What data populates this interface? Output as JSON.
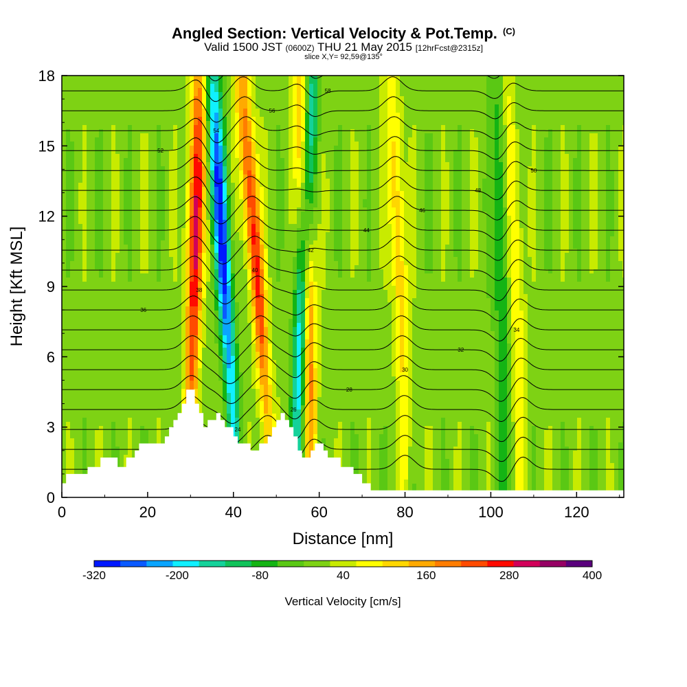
{
  "titles": {
    "main": "Angled Section: Vertical Velocity & Pot.Temp.",
    "main_tag": "(C)",
    "valid_a": "Valid 1500 JST",
    "valid_z": "(0600Z)",
    "valid_b": "THU 21 May 2015",
    "fcst": "[12hrFcst@2315z]",
    "slice": "slice X,Y= 92,59@135°"
  },
  "chart_data": {
    "type": "heatmap",
    "xlabel": "Distance [nm]",
    "ylabel": "Height [Kft MSL]",
    "xlim": [
      0,
      131
    ],
    "ylim": [
      0,
      18
    ],
    "x_ticks": [
      0,
      20,
      40,
      60,
      80,
      100,
      120
    ],
    "y_ticks": [
      0,
      3,
      6,
      9,
      12,
      15,
      18
    ],
    "colorbar": {
      "label": "Vertical Velocity [cm/s]",
      "tick_labels": [
        "-320",
        "-200",
        "-80",
        "40",
        "160",
        "280",
        "400"
      ],
      "tick_values": [
        -320,
        -200,
        -80,
        40,
        160,
        280,
        400
      ],
      "bins": [
        -320,
        -280,
        -240,
        -200,
        -160,
        -120,
        -80,
        -40,
        0,
        40,
        80,
        120,
        160,
        200,
        240,
        280,
        320,
        360,
        400
      ],
      "colors": [
        "#0018ff",
        "#0a5aff",
        "#0aa5ff",
        "#10f0ff",
        "#14d29a",
        "#10c35a",
        "#14b414",
        "#5ac814",
        "#7ed214",
        "#c8eb00",
        "#ffff00",
        "#ffd700",
        "#ffaa00",
        "#ff7d00",
        "#ff4b00",
        "#ff0a00",
        "#d2005a",
        "#960064",
        "#5a007d"
      ]
    },
    "background_value_cm_s": 20,
    "velocity_features": [
      {
        "type": "updraft",
        "x_bottom": 30,
        "x_top": 32,
        "peak": 320
      },
      {
        "type": "downdraft",
        "x_bottom": 40,
        "x_top": 35,
        "peak": -320
      },
      {
        "type": "updraft",
        "x_bottom": 48,
        "x_top": 42,
        "peak": 280
      },
      {
        "type": "updraft",
        "x_bottom": 58,
        "x_top": 56,
        "peak": 300
      },
      {
        "type": "downdraft",
        "x_bottom": 55,
        "x_top": 58,
        "peak": -320
      },
      {
        "type": "updraft",
        "x_bottom": 80,
        "x_top": 77,
        "peak": 140
      },
      {
        "type": "updraft",
        "x_bottom": 107,
        "x_top": 104,
        "peak": 120
      },
      {
        "type": "downdraft",
        "x_bottom": 103,
        "x_top": 102,
        "peak": -120
      }
    ],
    "terrain_kft": {
      "x": [
        0,
        1,
        2,
        3,
        4,
        5,
        6,
        7,
        8,
        9,
        10,
        11,
        12,
        13,
        14,
        15,
        16,
        17,
        18,
        19,
        20,
        21,
        22,
        23,
        24,
        25,
        26,
        27,
        28,
        29,
        30,
        31,
        32,
        33,
        34,
        35,
        36,
        37,
        38,
        39,
        40,
        41,
        42,
        43,
        44,
        45,
        46,
        47,
        48,
        49,
        50,
        51,
        52,
        53,
        54,
        55,
        56,
        57,
        58,
        59,
        60,
        61,
        62,
        63,
        64,
        65,
        66,
        67,
        68,
        69,
        70,
        71,
        72,
        131
      ],
      "h": [
        0.6,
        1.0,
        1.0,
        1.0,
        1.0,
        1.0,
        1.3,
        1.3,
        1.3,
        1.7,
        1.7,
        1.7,
        1.7,
        1.3,
        1.3,
        1.7,
        1.7,
        2.0,
        2.3,
        2.3,
        2.3,
        2.3,
        2.3,
        2.3,
        2.6,
        3.0,
        3.3,
        3.6,
        4.0,
        4.6,
        4.6,
        4.0,
        3.6,
        3.0,
        3.3,
        3.3,
        3.6,
        3.3,
        3.0,
        3.0,
        2.6,
        2.3,
        2.3,
        2.3,
        2.0,
        2.0,
        2.3,
        2.3,
        2.6,
        3.0,
        3.3,
        3.6,
        3.3,
        3.0,
        2.6,
        2.0,
        1.7,
        1.7,
        2.0,
        2.3,
        2.3,
        2.0,
        1.7,
        1.7,
        1.7,
        1.3,
        1.3,
        1.3,
        1.0,
        1.0,
        0.6,
        0.6,
        0.3,
        0.3
      ]
    },
    "theta_contour_labels": [
      "20",
      "22",
      "24",
      "26",
      "28",
      "30",
      "32",
      "34",
      "36",
      "38",
      "40",
      "42",
      "44",
      "46",
      "48",
      "50",
      "52",
      "54",
      "56",
      "58",
      "60"
    ]
  }
}
